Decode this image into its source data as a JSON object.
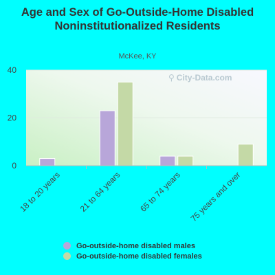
{
  "chart_data": {
    "type": "bar",
    "title": "Age and Sex of Go-Outside-Home Disabled Noninstitutionalized Residents",
    "subtitle": "McKee, KY",
    "categories": [
      "18 to 20 years",
      "21 to 64 years",
      "65 to 74 years",
      "75 years and over"
    ],
    "series": [
      {
        "name": "Go-outside-home disabled males",
        "values": [
          3,
          23,
          4,
          0
        ],
        "color": "#b8a6d9"
      },
      {
        "name": "Go-outside-home disabled females",
        "values": [
          0,
          35,
          4,
          9
        ],
        "color": "#c4d9a6"
      }
    ],
    "ylim": [
      0,
      40
    ],
    "yticks": [
      0,
      20,
      40
    ],
    "xlabel": "",
    "ylabel": "",
    "grid": true,
    "legend_position": "bottom"
  },
  "watermark": {
    "text": "City-Data.com",
    "icon": "magnifier-icon"
  }
}
